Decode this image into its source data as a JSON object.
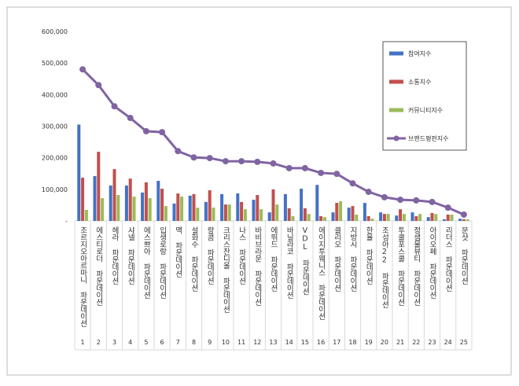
{
  "chart_data": {
    "type": "bar-line",
    "categories": [
      "조르지오아르마니 파운데이션",
      "에스티로더 파운데이션",
      "헤라 파운데이션",
      "샤넬 파운데이션",
      "에스쁘아 파운데이션",
      "입생로랑 파운데이션",
      "맥 파운데이션",
      "설화수 파운데이션",
      "랑콤 파운데이션",
      "크리스찬디올 파운데이션",
      "나스 파운데이션",
      "바비브라운 파운데이션",
      "에뛰드 파운데이션",
      "바닐라코 파운데이션",
      "VDL 파운데이션",
      "에이지투웨니스 파운데이션",
      "클리오 파운데이션",
      "지방시 파운데이션",
      "한율 파운데이션",
      "조성아22 파운데이션",
      "투쿨포스쿨 파운데이션",
      "정샘물뷰티 파운데이션",
      "아이오페 파운데이션",
      "리더스 파운데이션",
      "문샷 파운데이션"
    ],
    "ranks": [
      "1",
      "2",
      "3",
      "4",
      "5",
      "6",
      "7",
      "8",
      "9",
      "10",
      "11",
      "12",
      "13",
      "14",
      "15",
      "16",
      "17",
      "18",
      "19",
      "20",
      "21",
      "22",
      "23",
      "24",
      "25"
    ],
    "series": [
      {
        "name": "참여지수",
        "color": "#4472c4",
        "kind": "bar",
        "values": [
          305000,
          142000,
          112000,
          112000,
          90000,
          127000,
          55000,
          80000,
          60000,
          85000,
          87000,
          67000,
          27000,
          85000,
          102000,
          114000,
          27000,
          42000,
          57000,
          27000,
          17000,
          27000,
          12000,
          5000,
          7000
        ]
      },
      {
        "name": "소통지수",
        "color": "#c0504d",
        "kind": "bar",
        "values": [
          137000,
          219000,
          164000,
          134000,
          122000,
          102000,
          87000,
          85000,
          97000,
          52000,
          60000,
          82000,
          100000,
          40000,
          40000,
          15000,
          57000,
          47000,
          15000,
          22000,
          37000,
          15000,
          25000,
          20000,
          5000
        ]
      },
      {
        "name": "커뮤니티지수",
        "color": "#9bbb59",
        "kind": "bar",
        "values": [
          35000,
          72000,
          82000,
          77000,
          72000,
          47000,
          77000,
          42000,
          42000,
          52000,
          37000,
          37000,
          52000,
          15000,
          22000,
          12000,
          62000,
          20000,
          7000,
          22000,
          22000,
          22000,
          22000,
          20000,
          5000
        ]
      },
      {
        "name": "브랜드평판지수",
        "color": "#8064a2",
        "kind": "line",
        "values": [
          480000,
          430000,
          363000,
          326000,
          284000,
          281000,
          221000,
          201000,
          199000,
          189000,
          189000,
          187000,
          182000,
          167000,
          167000,
          152000,
          149000,
          119000,
          92000,
          75000,
          67000,
          65000,
          60000,
          42000,
          20000
        ]
      }
    ],
    "ylim": [
      0,
      600000
    ],
    "yticks": [
      {
        "value": 0,
        "label": "-"
      },
      {
        "value": 100000,
        "label": "100,000"
      },
      {
        "value": 200000,
        "label": "200,000"
      },
      {
        "value": 300000,
        "label": "300,000"
      },
      {
        "value": 400000,
        "label": "400,000"
      },
      {
        "value": 500000,
        "label": "500,000"
      },
      {
        "value": 600000,
        "label": "600,000"
      }
    ],
    "legend": "upper right"
  }
}
